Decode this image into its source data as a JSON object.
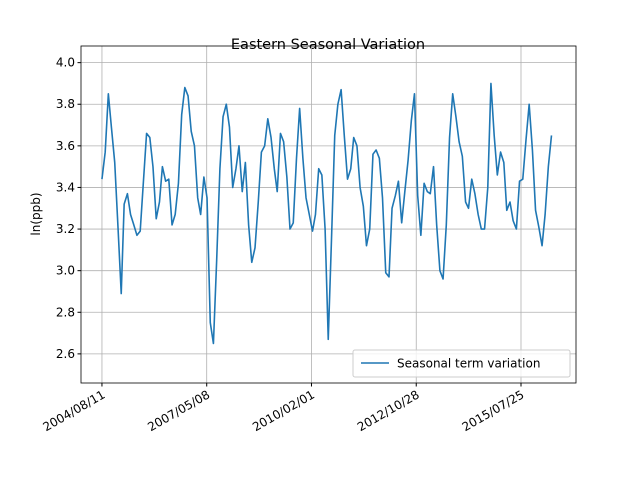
{
  "chart_data": {
    "type": "line",
    "title": "Eastern Seasonal Variation",
    "y_label": "ln(ppb)",
    "x": [
      "2004/08/11",
      "2004/09/11",
      "2004/10/11",
      "2004/11/11",
      "2004/12/11",
      "2005/01/11",
      "2005/02/11",
      "2005/03/11",
      "2005/04/11",
      "2005/05/11",
      "2005/06/11",
      "2005/07/11",
      "2005/08/11",
      "2005/09/11",
      "2005/10/11",
      "2005/11/11",
      "2005/12/11",
      "2006/01/11",
      "2006/02/11",
      "2006/03/11",
      "2006/04/11",
      "2006/05/11",
      "2006/06/11",
      "2006/07/11",
      "2006/08/11",
      "2006/09/11",
      "2006/10/11",
      "2006/11/11",
      "2006/12/11",
      "2007/01/11",
      "2007/02/11",
      "2007/03/11",
      "2007/04/11",
      "2007/05/11",
      "2007/06/11",
      "2007/07/11",
      "2007/08/11",
      "2007/09/11",
      "2007/10/11",
      "2007/11/11",
      "2007/12/11",
      "2008/01/11",
      "2008/02/11",
      "2008/03/11",
      "2008/04/11",
      "2008/05/11",
      "2008/06/11",
      "2008/07/11",
      "2008/08/11",
      "2008/09/11",
      "2008/10/11",
      "2008/11/11",
      "2008/12/11",
      "2009/01/11",
      "2009/02/11",
      "2009/03/11",
      "2009/04/11",
      "2009/05/11",
      "2009/06/11",
      "2009/07/11",
      "2009/08/11",
      "2009/09/11",
      "2009/10/11",
      "2009/11/11",
      "2009/12/11",
      "2010/01/11",
      "2010/02/11",
      "2010/03/11",
      "2010/04/11",
      "2010/05/11",
      "2010/06/11",
      "2010/07/11",
      "2010/08/11",
      "2010/09/11",
      "2010/10/11",
      "2010/11/11",
      "2010/12/11",
      "2011/01/11",
      "2011/02/11",
      "2011/03/11",
      "2011/04/11",
      "2011/05/11",
      "2011/06/11",
      "2011/07/11",
      "2011/08/11",
      "2011/09/11",
      "2011/10/11",
      "2011/11/11",
      "2011/12/11",
      "2012/01/11",
      "2012/02/11",
      "2012/03/11",
      "2012/04/11",
      "2012/05/11",
      "2012/06/11",
      "2012/07/11",
      "2012/08/11",
      "2012/09/11",
      "2012/10/11",
      "2012/11/11",
      "2012/12/11",
      "2013/01/11",
      "2013/02/11",
      "2013/03/11",
      "2013/04/11",
      "2013/05/11",
      "2013/06/11",
      "2013/07/11",
      "2013/08/11",
      "2013/09/11",
      "2013/10/11",
      "2013/11/11",
      "2013/12/11",
      "2014/01/11",
      "2014/02/11",
      "2014/03/11",
      "2014/04/11",
      "2014/05/11",
      "2014/06/11",
      "2014/07/11",
      "2014/08/11",
      "2014/09/11",
      "2014/10/11",
      "2014/11/11",
      "2014/12/11",
      "2015/01/11",
      "2015/02/11",
      "2015/03/11",
      "2015/04/11",
      "2015/05/11",
      "2015/06/11",
      "2015/07/11",
      "2015/08/11",
      "2015/09/11",
      "2015/10/11",
      "2015/11/11",
      "2015/12/11",
      "2016/01/11",
      "2016/02/11",
      "2016/03/11",
      "2016/04/11",
      "2016/05/11"
    ],
    "series": [
      {
        "name": "Seasonal term variation",
        "color": "#1f77b4",
        "values": [
          3.44,
          3.57,
          3.85,
          3.68,
          3.52,
          3.21,
          2.89,
          3.32,
          3.37,
          3.27,
          3.22,
          3.17,
          3.19,
          3.43,
          3.66,
          3.64,
          3.5,
          3.25,
          3.33,
          3.5,
          3.43,
          3.44,
          3.22,
          3.27,
          3.42,
          3.75,
          3.88,
          3.84,
          3.67,
          3.6,
          3.35,
          3.27,
          3.45,
          3.35,
          2.75,
          2.65,
          3.05,
          3.49,
          3.74,
          3.8,
          3.69,
          3.4,
          3.49,
          3.6,
          3.38,
          3.52,
          3.22,
          3.04,
          3.11,
          3.33,
          3.57,
          3.6,
          3.73,
          3.64,
          3.49,
          3.38,
          3.66,
          3.62,
          3.45,
          3.2,
          3.23,
          3.54,
          3.78,
          3.54,
          3.35,
          3.27,
          3.19,
          3.27,
          3.49,
          3.46,
          3.2,
          2.67,
          3.15,
          3.65,
          3.8,
          3.87,
          3.65,
          3.44,
          3.49,
          3.64,
          3.6,
          3.4,
          3.31,
          3.12,
          3.2,
          3.56,
          3.58,
          3.54,
          3.35,
          2.99,
          2.97,
          3.3,
          3.36,
          3.43,
          3.23,
          3.38,
          3.53,
          3.72,
          3.85,
          3.36,
          3.17,
          3.42,
          3.38,
          3.37,
          3.5,
          3.22,
          3.0,
          2.96,
          3.22,
          3.64,
          3.85,
          3.74,
          3.62,
          3.55,
          3.33,
          3.3,
          3.44,
          3.37,
          3.27,
          3.2,
          3.2,
          3.4,
          3.9,
          3.65,
          3.46,
          3.57,
          3.52,
          3.29,
          3.33,
          3.24,
          3.2,
          3.43,
          3.44,
          3.63,
          3.8,
          3.58,
          3.29,
          3.21,
          3.12,
          3.27,
          3.5,
          3.65
        ]
      }
    ],
    "xlim": [
      "2004/01/24",
      "2016/12/31"
    ],
    "xticks": [
      "2004/08/11",
      "2007/05/08",
      "2010/02/01",
      "2012/10/28",
      "2015/07/25"
    ],
    "ylim": [
      2.46,
      4.08
    ],
    "yticks": [
      2.6,
      2.8,
      {
        "value": 3,
        "label": "3.0"
      },
      3.2,
      3.4,
      3.6,
      3.8,
      {
        "value": 4,
        "label": "4.0"
      }
    ],
    "grid": true,
    "legend": "lower right"
  }
}
